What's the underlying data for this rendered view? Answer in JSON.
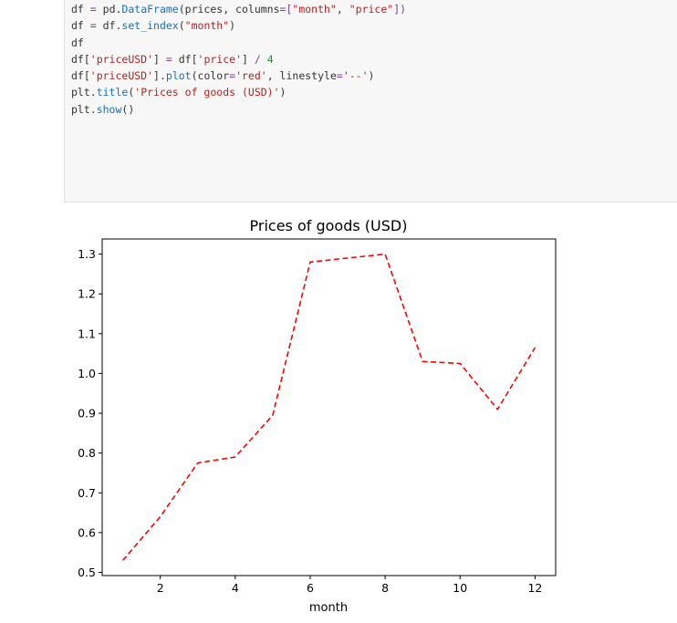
{
  "code_cell": {
    "lines": [
      [
        {
          "t": "df "
        },
        {
          "t": "=",
          "c": "op"
        },
        {
          "t": " pd."
        },
        {
          "t": "DataFrame",
          "c": "fn"
        },
        {
          "t": "(prices, columns"
        },
        {
          "t": "=",
          "c": "op"
        },
        {
          "t": "[",
          "c": "op"
        },
        {
          "t": "\"month\"",
          "c": "str"
        },
        {
          "t": ", "
        },
        {
          "t": "\"price\"",
          "c": "str"
        },
        {
          "t": "])",
          "c": "op"
        }
      ],
      [
        {
          "t": "df "
        },
        {
          "t": "=",
          "c": "op"
        },
        {
          "t": " df."
        },
        {
          "t": "set_index",
          "c": "fn"
        },
        {
          "t": "("
        },
        {
          "t": "\"month\"",
          "c": "str"
        },
        {
          "t": ")"
        }
      ],
      [
        {
          "t": "df"
        }
      ],
      [
        {
          "t": "df["
        },
        {
          "t": "'priceUSD'",
          "c": "str"
        },
        {
          "t": "] "
        },
        {
          "t": "=",
          "c": "op"
        },
        {
          "t": " df["
        },
        {
          "t": "'price'",
          "c": "str"
        },
        {
          "t": "] "
        },
        {
          "t": "/",
          "c": "op"
        },
        {
          "t": " "
        },
        {
          "t": "4",
          "c": "num"
        }
      ],
      [
        {
          "t": "df["
        },
        {
          "t": "'priceUSD'",
          "c": "str"
        },
        {
          "t": "]."
        },
        {
          "t": "plot",
          "c": "fn"
        },
        {
          "t": "(color"
        },
        {
          "t": "=",
          "c": "op"
        },
        {
          "t": "'red'",
          "c": "str"
        },
        {
          "t": ", linestyle"
        },
        {
          "t": "=",
          "c": "op"
        },
        {
          "t": "'--'",
          "c": "str"
        },
        {
          "t": ")"
        }
      ],
      [
        {
          "t": "plt."
        },
        {
          "t": "title",
          "c": "fn"
        },
        {
          "t": "("
        },
        {
          "t": "'Prices of goods (USD)'",
          "c": "str"
        },
        {
          "t": ")"
        }
      ],
      [
        {
          "t": "plt."
        },
        {
          "t": "show",
          "c": "fn"
        },
        {
          "t": "()"
        }
      ]
    ]
  },
  "chart_data": {
    "type": "line",
    "title": "Prices of goods (USD)",
    "xlabel": "month",
    "ylabel": "",
    "x": [
      1,
      2,
      3,
      4,
      5,
      6,
      7,
      8,
      9,
      10,
      11,
      12
    ],
    "series": [
      {
        "values": [
          0.53,
          0.64,
          0.775,
          0.79,
          0.895,
          1.28,
          1.29,
          1.3,
          1.03,
          1.025,
          0.91,
          1.065
        ],
        "color": "#ff0000",
        "linestyle": "dashed"
      }
    ],
    "xlim": [
      0.45,
      12.55
    ],
    "ylim": [
      0.492,
      1.338
    ],
    "xticks": [
      2,
      4,
      6,
      8,
      10,
      12
    ],
    "yticks": [
      0.5,
      0.6,
      0.7,
      0.8,
      0.9,
      1.0,
      1.1,
      1.2,
      1.3
    ],
    "xtick_labels": [
      "2",
      "4",
      "6",
      "8",
      "10",
      "12"
    ],
    "ytick_labels": [
      "0.5",
      "0.6",
      "0.7",
      "0.8",
      "0.9",
      "1.0",
      "1.1",
      "1.2",
      "1.3"
    ],
    "grid": false,
    "legend": "none"
  }
}
